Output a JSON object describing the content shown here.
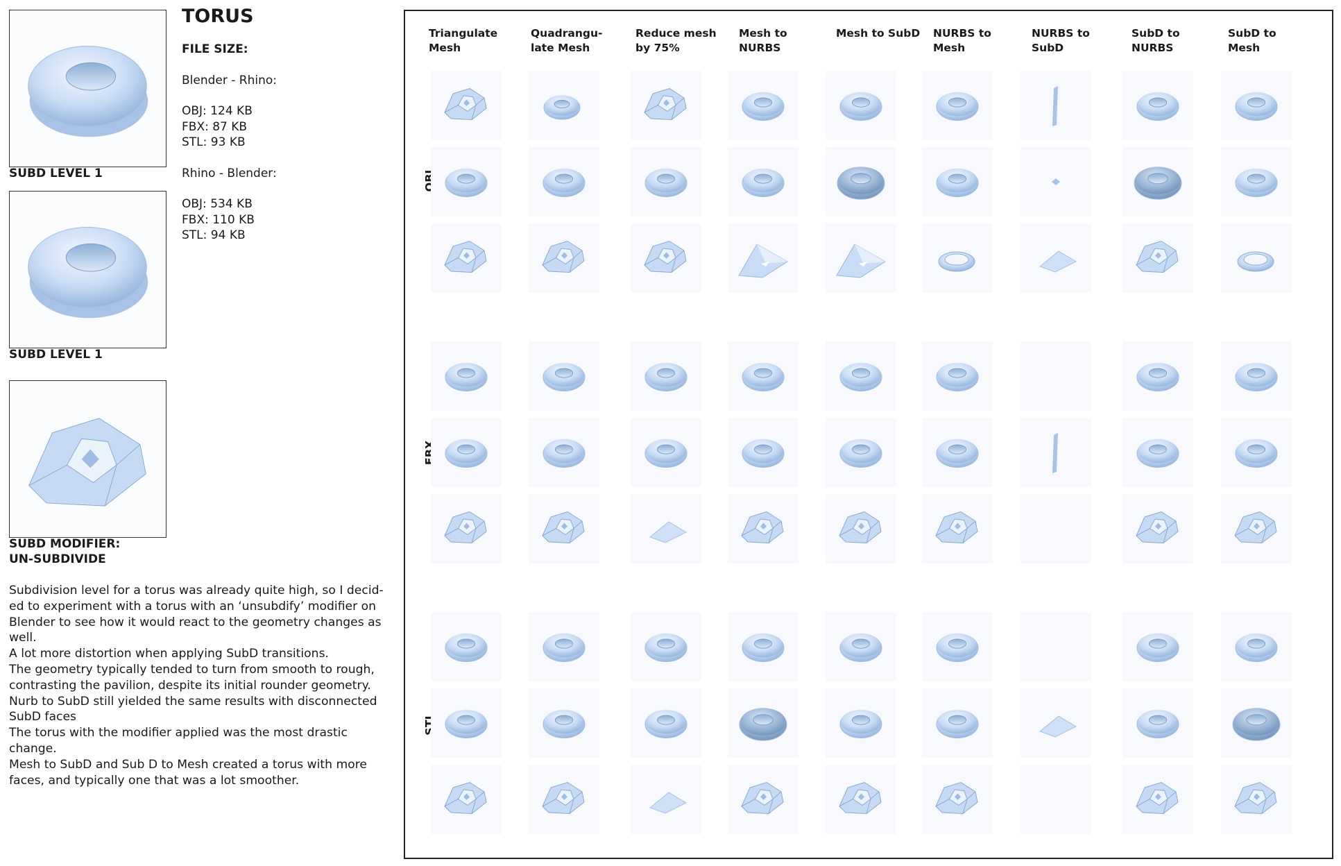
{
  "title": "TORUS",
  "file_size": {
    "heading": "FILE SIZE:",
    "groups": [
      {
        "label": "Blender - Rhino:",
        "lines": [
          "OBJ: 124 KB",
          "FBX: 87 KB",
          "STL: 93 KB"
        ]
      },
      {
        "label": "Rhino - Blender:",
        "lines": [
          "OBJ: 534 KB",
          "FBX: 110 KB",
          "STL: 94 KB"
        ]
      }
    ]
  },
  "previews": [
    {
      "caption": "SUBD LEVEL 1",
      "shape": "subd-rough"
    },
    {
      "caption": "SUBD LEVEL 1",
      "shape": "smooth"
    },
    {
      "caption": "SUBD MODIFIER:\nUN-SUBDIVIDE",
      "shape": "faceted"
    }
  ],
  "description": [
    "Subdivision level for a torus was already quite high, so I decid-\ned to experiment with a torus with an ‘unsubdify’ modifier on\nBlender to see how it would react to the geometry changes as\nwell.",
    "A lot more distortion when applying SubD transitions.",
    "The geometry typically tended to turn from smooth to rough,\ncontrasting the pavilion, despite its initial rounder geometry.",
    "Nurb to SubD still yielded the same results with disconnected\nSubD faces",
    "The torus with the modifier applied was the most drastic change.",
    "Mesh to SubD and Sub D to Mesh created a torus with more\nfaces, and typically one that was a lot smoother."
  ],
  "matrix": {
    "columns": [
      "Triangulate\nMesh",
      "Quadrangu-\nlate Mesh",
      "Reduce mesh\nby 75%",
      "Mesh to\nNURBS",
      "Mesh to SubD",
      "NURBS to\nMesh",
      "NURBS to\nSubD",
      "SubD to\nNURBS",
      "SubD to\nMesh"
    ],
    "formats": [
      "OBJ",
      "FBX",
      "STL"
    ],
    "grid": [
      [
        "f",
        "r",
        "f",
        "s",
        "s",
        "s",
        "l",
        "s",
        "s"
      ],
      [
        "s",
        "s",
        "s",
        "s",
        "d",
        "s",
        "k",
        "d",
        "s"
      ],
      [
        "f",
        "f",
        "f",
        "t",
        "t",
        "o",
        "p",
        "f",
        "o"
      ],
      [
        "s",
        "s",
        "s",
        "s",
        "s",
        "s",
        "e",
        "s",
        "s"
      ],
      [
        "s",
        "s",
        "s",
        "s",
        "s",
        "s",
        "l",
        "s",
        "s"
      ],
      [
        "f",
        "f",
        "p",
        "f",
        "f",
        "f",
        "e",
        "f",
        "f"
      ],
      [
        "s",
        "s",
        "s",
        "s",
        "s",
        "s",
        "e",
        "s",
        "s"
      ],
      [
        "s",
        "s",
        "s",
        "d",
        "s",
        "s",
        "p",
        "s",
        "d"
      ],
      [
        "f",
        "f",
        "p",
        "f",
        "f",
        "f",
        "e",
        "f",
        "f"
      ]
    ]
  }
}
